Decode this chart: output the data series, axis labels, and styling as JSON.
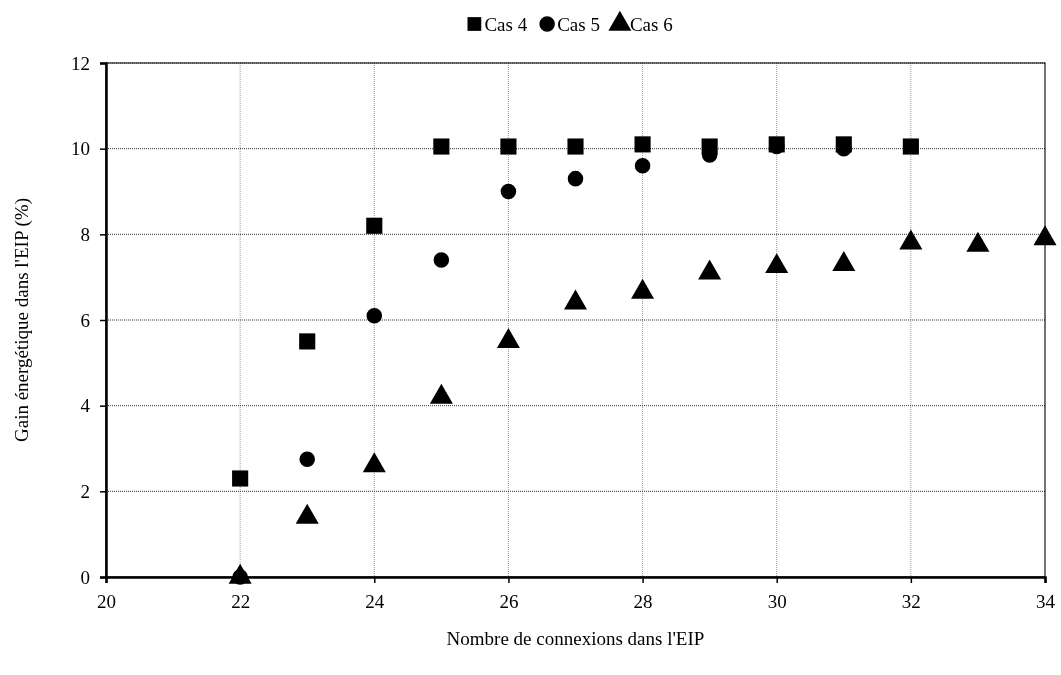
{
  "chart_data": {
    "type": "scatter",
    "xlabel": "Nombre de connexions dans l'EIP",
    "ylabel": "Gain énergétique dans l'EIP (%)",
    "xlim": [
      20,
      34
    ],
    "xticks": [
      20,
      22,
      24,
      26,
      28,
      30,
      32,
      34
    ],
    "ylim": [
      0,
      12
    ],
    "yticks": [
      0,
      2,
      4,
      6,
      8,
      10,
      12
    ],
    "grid": true,
    "legend": "top",
    "series": [
      {
        "name": "Cas 4",
        "color": "#000000",
        "marker": "square",
        "x": [
          22,
          23,
          24,
          25,
          26,
          27,
          28,
          29,
          30,
          31,
          32
        ],
        "values": [
          2.3,
          5.5,
          8.2,
          10.05,
          10.05,
          10.05,
          10.1,
          10.05,
          10.1,
          10.1,
          10.05
        ]
      },
      {
        "name": "Cas 5",
        "color": "#000000",
        "marker": "circle",
        "x": [
          22,
          23,
          24,
          25,
          26,
          27,
          28,
          29,
          30,
          31
        ],
        "values": [
          0,
          2.75,
          6.1,
          7.4,
          9.0,
          9.3,
          9.6,
          9.85,
          10.05,
          10.0
        ]
      },
      {
        "name": "Cas 6",
        "color": "#000000",
        "marker": "triangle",
        "x": [
          22,
          23,
          24,
          25,
          26,
          27,
          28,
          29,
          30,
          31,
          32,
          33,
          34
        ],
        "values": [
          0,
          1.4,
          2.6,
          4.2,
          5.5,
          6.4,
          6.65,
          7.1,
          7.25,
          7.3,
          7.8,
          7.75,
          7.9
        ]
      }
    ]
  }
}
